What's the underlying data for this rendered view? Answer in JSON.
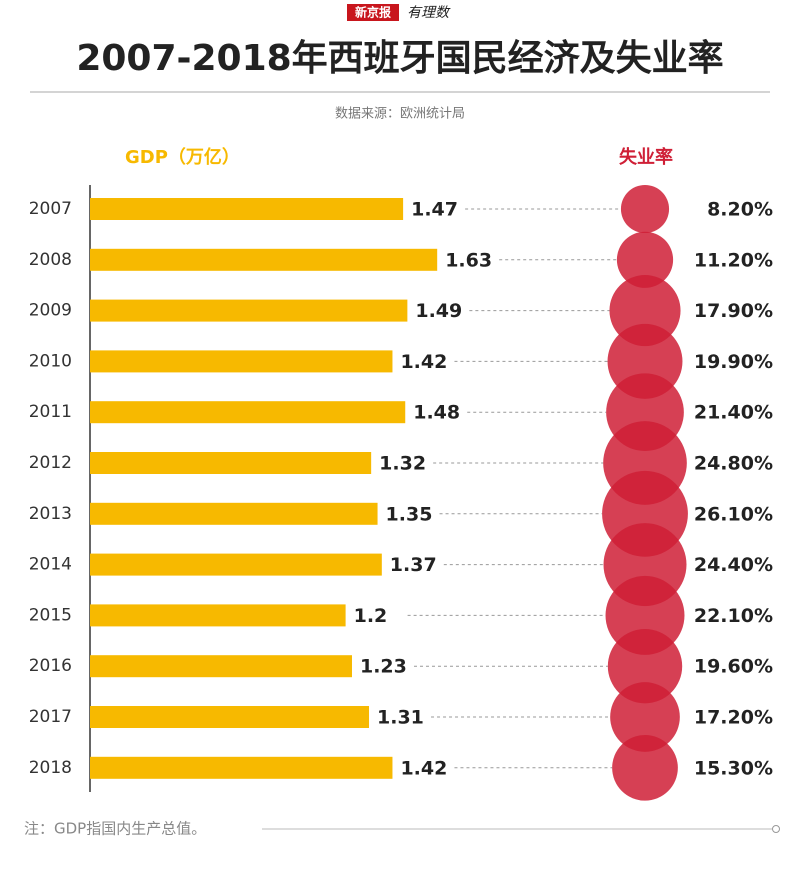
{
  "brand": {
    "name": "新京报",
    "column": "有理数"
  },
  "chart_data": {
    "type": "bar",
    "title": "2007-2018年西班牙国民经济及失业率",
    "subtitle": "数据来源：欧洲统计局",
    "note": "注：GDP指国内生产总值。",
    "categories": [
      "2007",
      "2008",
      "2009",
      "2010",
      "2011",
      "2012",
      "2013",
      "2014",
      "2015",
      "2016",
      "2017",
      "2018"
    ],
    "series": [
      {
        "name": "GDP（万亿）",
        "color": "#f7b900",
        "values": [
          1.47,
          1.63,
          1.49,
          1.42,
          1.48,
          1.32,
          1.35,
          1.37,
          1.2,
          1.23,
          1.31,
          1.42
        ]
      },
      {
        "name": "失业率",
        "color": "#cf1f36",
        "values": [
          8.2,
          11.2,
          17.9,
          19.9,
          21.4,
          24.8,
          26.1,
          24.4,
          22.1,
          19.6,
          17.2,
          15.3
        ],
        "value_labels": [
          "8.20%",
          "11.20%",
          "17.90%",
          "19.90%",
          "21.40%",
          "24.80%",
          "26.10%",
          "24.40%",
          "22.10%",
          "19.60%",
          "17.20%",
          "15.30%"
        ]
      }
    ]
  }
}
